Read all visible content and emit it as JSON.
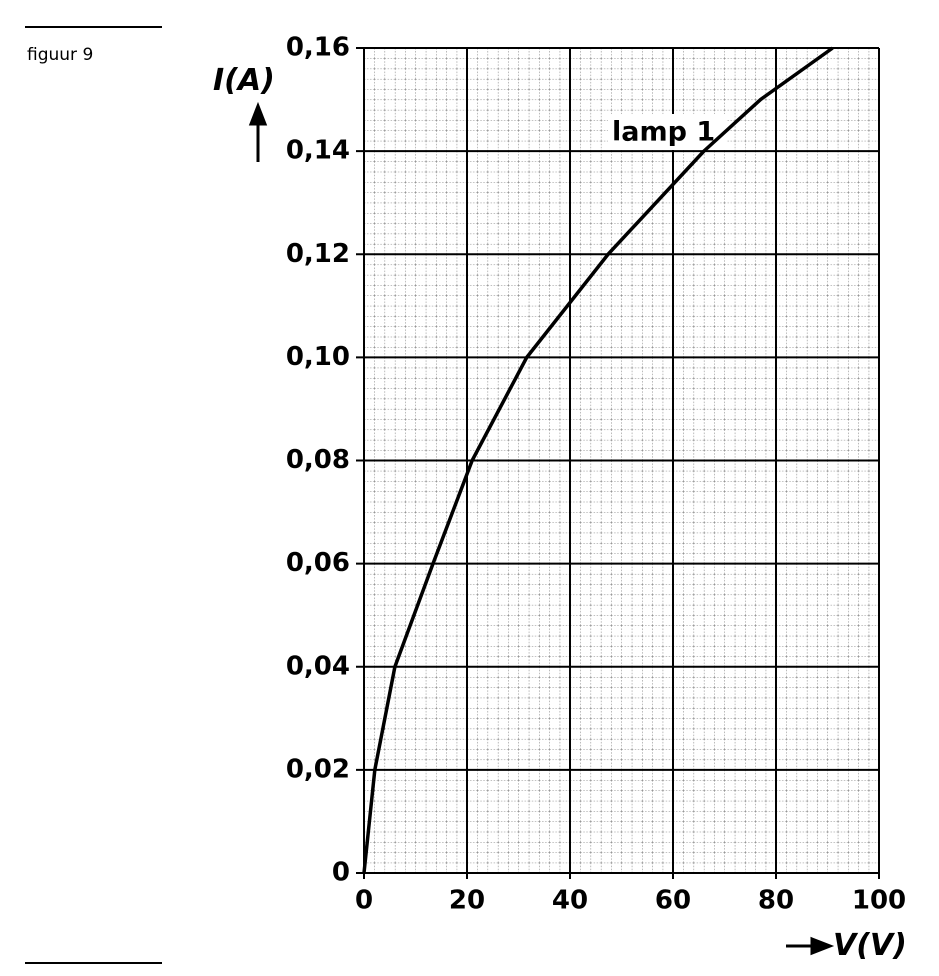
{
  "chart_data": {
    "type": "line",
    "caption": "figuur 9",
    "ylabel": "I(A)",
    "xlabel": "V(V)",
    "annotation": "lamp 1",
    "x": [
      0,
      2.1,
      6,
      13.4,
      21,
      31.6,
      47.4,
      66,
      77,
      91
    ],
    "series": [
      {
        "name": "lamp 1",
        "color": "#000000",
        "values": [
          0,
          0.02,
          0.04,
          0.06,
          0.08,
          0.1,
          0.12,
          0.14,
          0.15,
          0.16
        ]
      }
    ],
    "xlim": [
      0,
      100
    ],
    "xticks": [
      0,
      20,
      40,
      60,
      80,
      100
    ],
    "ylim": [
      0,
      0.16
    ],
    "yticks": [
      0,
      {
        "value": 0.02,
        "label": "0,02"
      },
      {
        "value": 0.04,
        "label": "0,04"
      },
      {
        "value": 0.06,
        "label": "0,06"
      },
      {
        "value": 0.08,
        "label": "0,08"
      },
      {
        "value": 0.1,
        "label": "0,10"
      },
      {
        "value": 0.12,
        "label": "0,12"
      },
      {
        "value": 0.14,
        "label": "0,14"
      },
      {
        "value": 0.16,
        "label": "0,16"
      }
    ],
    "grid": true
  }
}
